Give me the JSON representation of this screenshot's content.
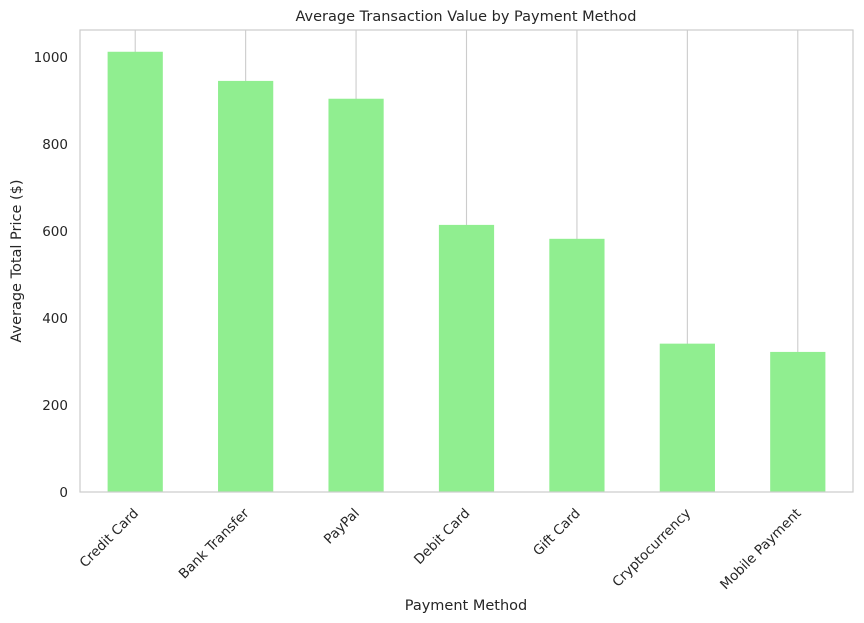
{
  "chart_data": {
    "type": "bar",
    "title": "Average Transaction Value by Payment Method",
    "xlabel": "Payment Method",
    "ylabel": "Average Total Price ($)",
    "categories": [
      "Credit Card",
      "Bank Transfer",
      "PayPal",
      "Debit Card",
      "Gift Card",
      "Cryptocurrency",
      "Mobile Payment"
    ],
    "values": [
      1012,
      945,
      904,
      614,
      582,
      341,
      322
    ],
    "ylim": [
      0,
      1062
    ],
    "yticks": [
      0,
      200,
      400,
      600,
      800,
      1000
    ],
    "grid": "x-only",
    "bar_color": "#90ee90",
    "grid_color": "#cccccc",
    "frame_color": "#cccccc"
  }
}
